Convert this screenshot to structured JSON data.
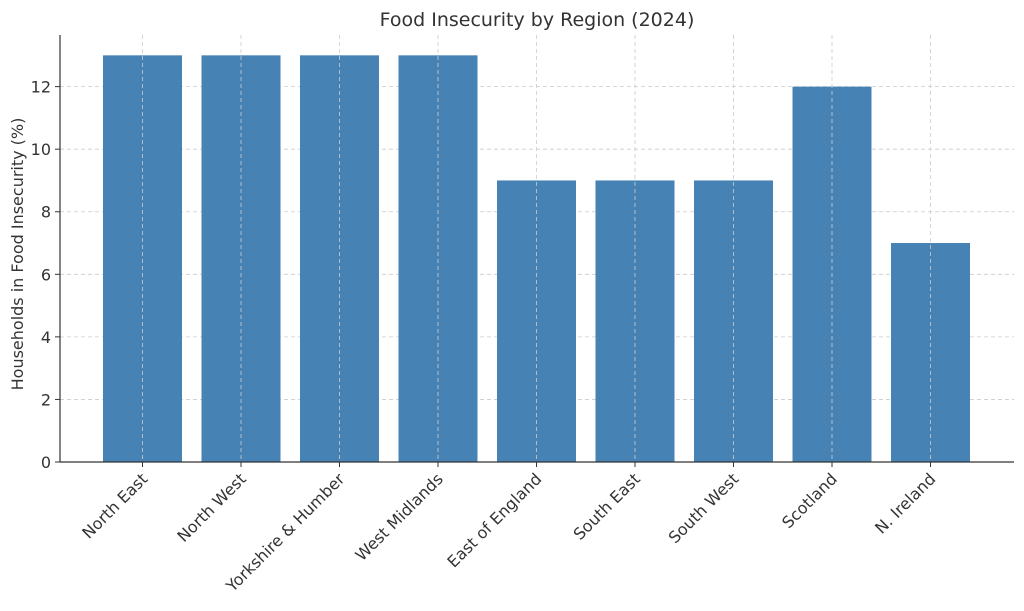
{
  "chart_data": {
    "type": "bar",
    "title": "Food Insecurity by Region (2024)",
    "xlabel": "",
    "ylabel": "Households in Food Insecurity (%)",
    "categories": [
      "North East",
      "North West",
      "Yorkshire & Humber",
      "West Midlands",
      "East of England",
      "South East",
      "South West",
      "Scotland",
      "N. Ireland"
    ],
    "values": [
      13,
      13,
      13,
      13,
      9,
      9,
      9,
      12,
      7
    ],
    "ylim": [
      0,
      13.65
    ],
    "yticks": [
      0,
      2,
      4,
      6,
      8,
      10,
      12
    ],
    "grid": true,
    "bar_color": "#4682b4",
    "legend": "none"
  }
}
